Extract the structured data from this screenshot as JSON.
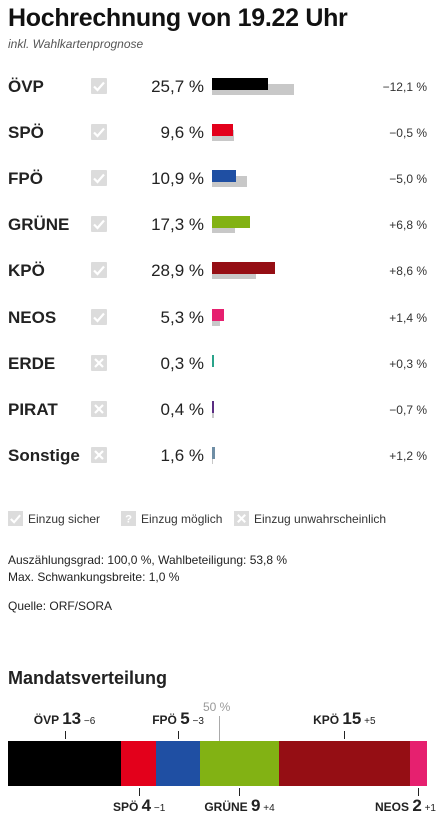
{
  "header": {
    "title": "Hochrechnung von 19.22 Uhr",
    "subtitle": "inkl. Wahlkartenprognose"
  },
  "results": [
    {
      "party": "ÖVP",
      "status": "sicher",
      "pct": "25,7 %",
      "value": 25.7,
      "prev": 37.8,
      "diff": "−12,1 %",
      "color": "#000000"
    },
    {
      "party": "SPÖ",
      "status": "sicher",
      "pct": "9,6 %",
      "value": 9.6,
      "prev": 10.1,
      "diff": "−0,5 %",
      "color": "#e3001b"
    },
    {
      "party": "FPÖ",
      "status": "sicher",
      "pct": "10,9 %",
      "value": 10.9,
      "prev": 15.9,
      "diff": "−5,0 %",
      "color": "#1f4fa3"
    },
    {
      "party": "GRÜNE",
      "status": "sicher",
      "pct": "17,3 %",
      "value": 17.3,
      "prev": 10.5,
      "diff": "+6,8 %",
      "color": "#82b214"
    },
    {
      "party": "KPÖ",
      "status": "sicher",
      "pct": "28,9 %",
      "value": 28.9,
      "prev": 20.3,
      "diff": "+8,6 %",
      "color": "#950e14"
    },
    {
      "party": "NEOS",
      "status": "sicher",
      "pct": "5,3 %",
      "value": 5.3,
      "prev": 3.9,
      "diff": "+1,4 %",
      "color": "#e6206f"
    },
    {
      "party": "ERDE",
      "status": "unwahrscheinlich",
      "pct": "0,3 %",
      "value": 0.3,
      "prev": 0.0,
      "diff": "+0,3 %",
      "color": "#2aa38a"
    },
    {
      "party": "PIRAT",
      "status": "unwahrscheinlich",
      "pct": "0,4 %",
      "value": 0.4,
      "prev": 1.1,
      "diff": "−0,7 %",
      "color": "#5a2d82"
    },
    {
      "party": "Sonstige",
      "status": "unwahrscheinlich",
      "pct": "1,6 %",
      "value": 1.6,
      "prev": 0.4,
      "diff": "+1,2 %",
      "color": "#6f8ea5"
    }
  ],
  "legend": {
    "sicher": "Einzug sicher",
    "moeglich": "Einzug möglich",
    "unwahrscheinlich": "Einzug unwahrscheinlich"
  },
  "info": {
    "line1": "Auszählungsgrad: 100,0 %, Wahlbeteiligung: 53,8 %",
    "line2": "Max. Schwankungsbreite: 1,0 %",
    "source": "Quelle: ORF/SORA"
  },
  "mandate": {
    "title": "Mandatsverteilung",
    "half_label": "50 %",
    "seats": [
      {
        "party": "ÖVP",
        "seats": "13",
        "diff": "−6",
        "color": "#000000"
      },
      {
        "party": "SPÖ",
        "seats": "4",
        "diff": "−1",
        "color": "#e3001b"
      },
      {
        "party": "FPÖ",
        "seats": "5",
        "diff": "−3",
        "color": "#1f4fa3"
      },
      {
        "party": "GRÜNE",
        "seats": "9",
        "diff": "+4",
        "color": "#82b214"
      },
      {
        "party": "KPÖ",
        "seats": "15",
        "diff": "+5",
        "color": "#950e14"
      },
      {
        "party": "NEOS",
        "seats": "2",
        "diff": "+1",
        "color": "#e6206f"
      }
    ]
  }
}
